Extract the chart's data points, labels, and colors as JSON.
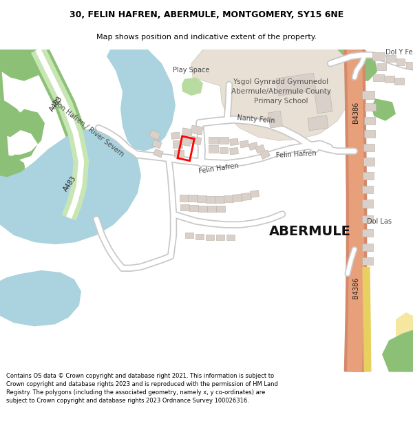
{
  "title_line1": "30, FELIN HAFREN, ABERMULE, MONTGOMERY, SY15 6NE",
  "title_line2": "Map shows position and indicative extent of the property.",
  "footer_text": "Contains OS data © Crown copyright and database right 2021. This information is subject to Crown copyright and database rights 2023 and is reproduced with the permission of HM Land Registry. The polygons (including the associated geometry, namely x, y co-ordinates) are subject to Crown copyright and database rights 2023 Ordnance Survey 100026316.",
  "bg_color": "#ffffff",
  "map_bg": "#f8f8f8",
  "water_color": "#aad3df",
  "green_dark": "#8dc077",
  "green_light": "#c8e6b4",
  "road_orange": "#e8a07a",
  "road_orange_light": "#f0b898",
  "building_color": "#d9d0c9",
  "building_edge": "#b8afa7",
  "school_color": "#e8e0d5",
  "school_edge": "#ccc4b8",
  "play_color": "#b8dba0",
  "highlight_color": "#ff0000",
  "road_white": "#ffffff",
  "road_outline": "#c8c8c8"
}
